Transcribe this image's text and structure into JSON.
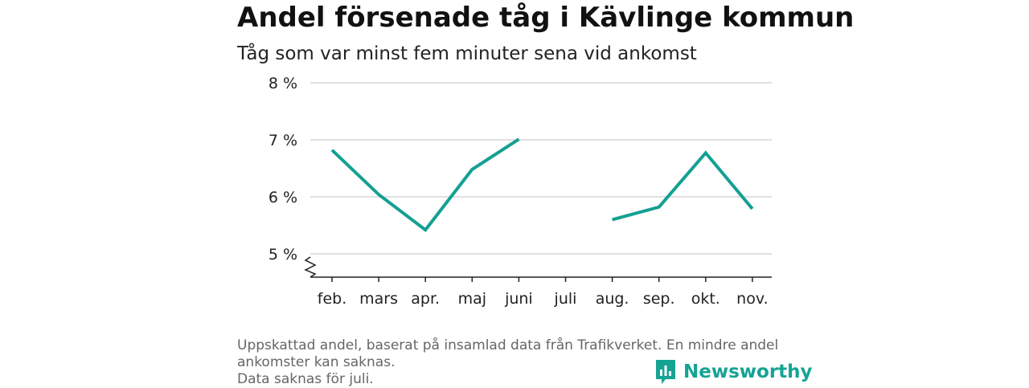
{
  "title": "Andel försenade tåg i Kävlinge kommun",
  "subtitle": "Tåg som var minst fem minuter sena vid ankomst",
  "notes": [
    "Uppskattad andel, baserat på insamlad data från Trafikverket. En mindre andel",
    "ankomster kan saknas.",
    "Data saknas för juli."
  ],
  "brand": {
    "name": "Newsworthy",
    "icon": "newsworthy-logo-icon",
    "color": "#15a394"
  },
  "chart_data": {
    "type": "line",
    "title": "Andel försenade tåg i Kävlinge kommun",
    "subtitle": "Tåg som var minst fem minuter sena vid ankomst",
    "categories": [
      "feb.",
      "mars",
      "apr.",
      "maj",
      "juni",
      "juli",
      "aug.",
      "sep.",
      "okt.",
      "nov."
    ],
    "series": [
      {
        "values": [
          6.82,
          6.04,
          5.42,
          6.48,
          7.01,
          null,
          5.6,
          5.82,
          6.77,
          5.79
        ],
        "color": "#14a093"
      }
    ],
    "ylim": [
      4.6,
      8
    ],
    "yticks": [
      5,
      6,
      7,
      8
    ],
    "ytick_labels": [
      "5 %",
      "6 %",
      "7 %",
      "8 %"
    ],
    "y_axis_break": true,
    "grid": true,
    "legend": "none"
  }
}
